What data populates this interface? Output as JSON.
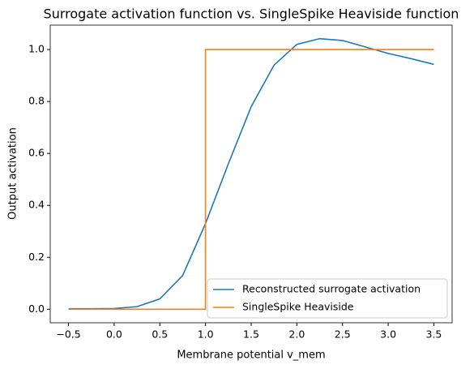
{
  "chart_data": {
    "type": "line",
    "title": "Surrogate activation function vs. SingleSpike Heaviside function",
    "xlabel": "Membrane potential v_mem",
    "ylabel": "Output activation",
    "xlim": [
      -0.7,
      3.7
    ],
    "ylim": [
      -0.052,
      1.094
    ],
    "xticks": [
      {
        "value": -0.5,
        "label": "−0.5"
      },
      {
        "value": 0,
        "label": "0.0"
      },
      {
        "value": 0.5,
        "label": "0.5"
      },
      {
        "value": 1,
        "label": "1.0"
      },
      {
        "value": 1.5,
        "label": "1.5"
      },
      {
        "value": 2,
        "label": "2.0"
      },
      {
        "value": 2.5,
        "label": "2.5"
      },
      {
        "value": 3,
        "label": "3.0"
      },
      {
        "value": 3.5,
        "label": "3.5"
      }
    ],
    "yticks": [
      {
        "value": 0,
        "label": "0.0"
      },
      {
        "value": 0.2,
        "label": "0.2"
      },
      {
        "value": 0.4,
        "label": "0.4"
      },
      {
        "value": 0.6,
        "label": "0.6"
      },
      {
        "value": 0.8,
        "label": "0.8"
      },
      {
        "value": 1,
        "label": "1.0"
      }
    ],
    "legend": "lower right",
    "series": [
      {
        "name": "Reconstructed surrogate activation",
        "color": "#1f77b4",
        "x": [
          -0.5,
          -0.25,
          0,
          0.25,
          0.5,
          0.75,
          1,
          1.25,
          1.5,
          1.75,
          2,
          2.25,
          2.5,
          2.75,
          3,
          3.25,
          3.5
        ],
        "values": [
          0.002,
          0.002,
          0.003,
          0.01,
          0.04,
          0.13,
          0.33,
          0.56,
          0.78,
          0.94,
          1.02,
          1.042,
          1.035,
          1.01,
          0.985,
          0.965,
          0.943
        ]
      },
      {
        "name": "SingleSpike Heaviside",
        "color": "#ff7f0e",
        "x": [
          -0.5,
          1,
          1,
          3.5
        ],
        "values": [
          0,
          0,
          1,
          1
        ]
      }
    ]
  }
}
